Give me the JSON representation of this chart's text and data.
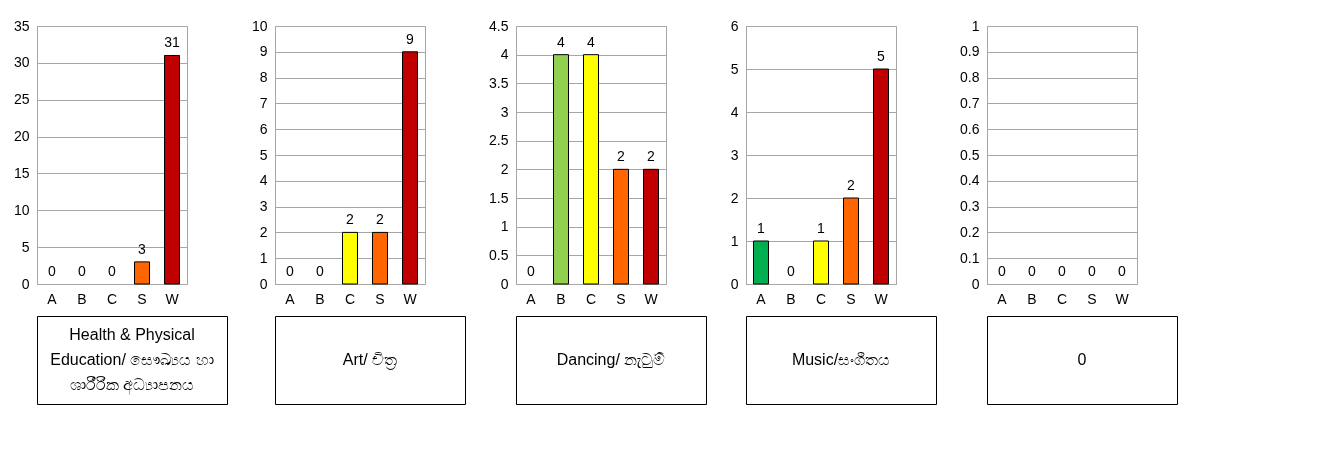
{
  "chart_data": [
    {
      "type": "bar",
      "title": "Health & Physical Education/ සෞඛ්‍යය හා ශාරීරික අධ්‍යාපනය",
      "categories": [
        "A",
        "B",
        "C",
        "S",
        "W"
      ],
      "values": [
        0,
        0,
        0,
        3,
        31
      ],
      "colors": [
        "#00b050",
        "#92d050",
        "#ffff00",
        "#ff6600",
        "#c00000"
      ],
      "ylim": [
        0,
        35
      ],
      "yticks": [
        0,
        5,
        10,
        15,
        20,
        25,
        30,
        35
      ],
      "grid": "y",
      "data_labels": true
    },
    {
      "type": "bar",
      "title": "Art/ චිත්‍ර",
      "categories": [
        "A",
        "B",
        "C",
        "S",
        "W"
      ],
      "values": [
        0,
        0,
        2,
        2,
        9
      ],
      "colors": [
        "#00b050",
        "#92d050",
        "#ffff00",
        "#ff6600",
        "#c00000"
      ],
      "ylim": [
        0,
        10
      ],
      "yticks": [
        0,
        1,
        2,
        3,
        4,
        5,
        6,
        7,
        8,
        9,
        10
      ],
      "grid": "y",
      "data_labels": true
    },
    {
      "type": "bar",
      "title": "Dancing/ නැටුම්",
      "categories": [
        "A",
        "B",
        "C",
        "S",
        "W"
      ],
      "values": [
        0,
        4,
        4,
        2,
        2
      ],
      "colors": [
        "#00b050",
        "#92d050",
        "#ffff00",
        "#ff6600",
        "#c00000"
      ],
      "ylim": [
        0,
        4.5
      ],
      "yticks": [
        0,
        0.5,
        1,
        1.5,
        2,
        2.5,
        3,
        3.5,
        4,
        4.5
      ],
      "grid": "y",
      "data_labels": true
    },
    {
      "type": "bar",
      "title": "Music/සංගීතය",
      "categories": [
        "A",
        "B",
        "C",
        "S",
        "W"
      ],
      "values": [
        1,
        0,
        1,
        2,
        5
      ],
      "colors": [
        "#00b050",
        "#92d050",
        "#ffff00",
        "#ff6600",
        "#c00000"
      ],
      "ylim": [
        0,
        6
      ],
      "yticks": [
        0,
        1,
        2,
        3,
        4,
        5,
        6
      ],
      "grid": "y",
      "data_labels": true
    },
    {
      "type": "bar",
      "title": "0",
      "categories": [
        "A",
        "B",
        "C",
        "S",
        "W"
      ],
      "values": [
        0,
        0,
        0,
        0,
        0
      ],
      "colors": [
        "#00b050",
        "#92d050",
        "#ffff00",
        "#ff6600",
        "#c00000"
      ],
      "ylim": [
        0,
        1
      ],
      "yticks": [
        0,
        0.1,
        0.2,
        0.3,
        0.4,
        0.5,
        0.6,
        0.7,
        0.8,
        0.9,
        1
      ],
      "grid": "y",
      "data_labels": true
    }
  ]
}
